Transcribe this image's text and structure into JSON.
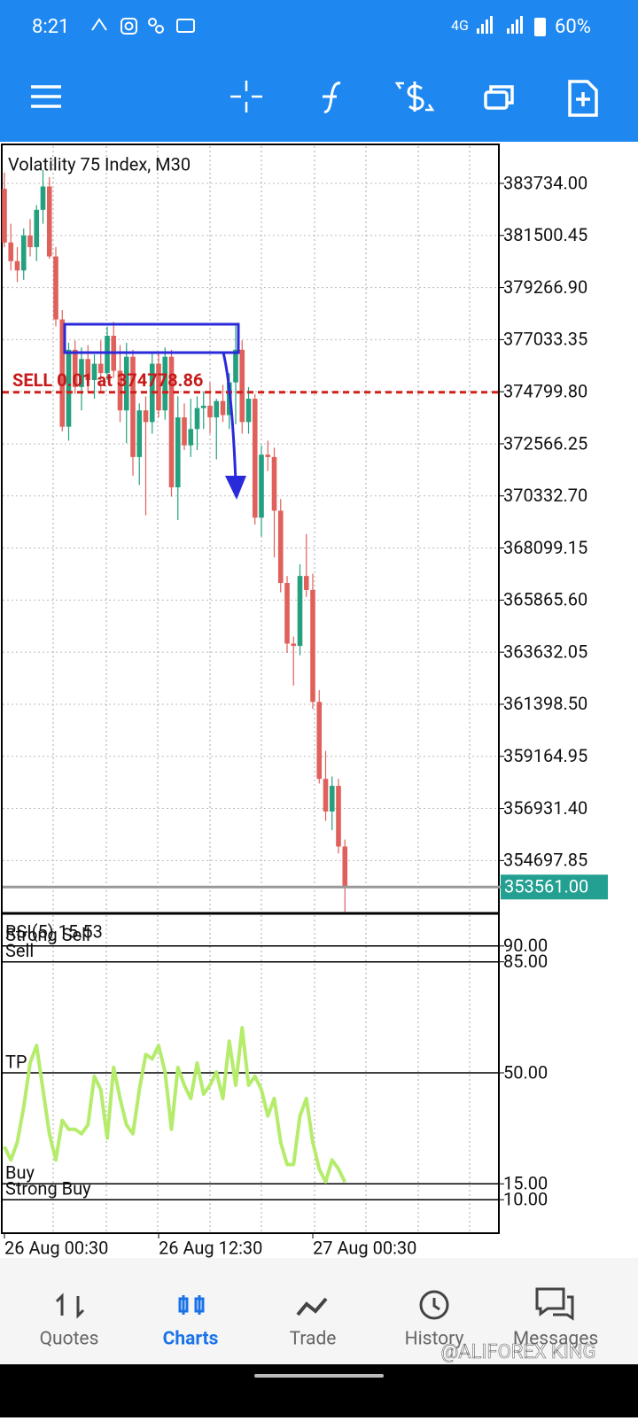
{
  "status_bar": {
    "time": "8:21",
    "network": "4G",
    "battery": "60%"
  },
  "chart_data": [
    {
      "type": "candlestick",
      "title": "Volatility 75 Index, M30",
      "categories": [
        "26 Aug 00:30",
        null,
        null,
        null,
        null,
        null,
        null,
        null,
        null,
        null,
        null,
        null,
        null,
        null,
        null,
        null,
        null,
        null,
        null,
        null,
        null,
        null,
        null,
        null,
        "26 Aug 12:30",
        null,
        null,
        null,
        null,
        null,
        null,
        null,
        null,
        null,
        null,
        null,
        null,
        null,
        null,
        null,
        null,
        null,
        null,
        null,
        null,
        null,
        null,
        null,
        "27 Aug 00:30",
        null,
        null,
        null,
        null,
        null
      ],
      "open": [
        383500,
        381200,
        380400,
        380000,
        381500,
        381000,
        382600,
        383600,
        380600,
        377900,
        373300,
        376600,
        375000,
        376200,
        375300,
        376000,
        375600,
        377200,
        375700,
        374000,
        376300,
        372000,
        374000,
        373500,
        376000,
        374000,
        376300,
        370700,
        373700,
        372500,
        373200,
        374100,
        374200,
        373700,
        374400,
        373800,
        375200,
        376600,
        373500,
        374500,
        369400,
        372100,
        372000,
        369700,
        366600,
        364000,
        363900,
        366900,
        366300,
        361500,
        358200,
        356800,
        357900,
        355300
      ],
      "high": [
        384200,
        382000,
        381000,
        381800,
        382200,
        382800,
        384300,
        384000,
        381000,
        378300,
        376900,
        377000,
        376700,
        376800,
        376400,
        377000,
        377600,
        377800,
        376800,
        376900,
        376600,
        374300,
        374600,
        376500,
        376500,
        376700,
        376600,
        374600,
        374300,
        374500,
        374600,
        374800,
        375200,
        374500,
        375100,
        375600,
        377700,
        377000,
        375000,
        374700,
        372500,
        372700,
        372400,
        370200,
        366900,
        364300,
        367400,
        368700,
        367000,
        362000,
        359400,
        358300,
        358200,
        355600
      ],
      "low": [
        381000,
        380000,
        379500,
        379600,
        380600,
        380400,
        382000,
        380500,
        377600,
        373100,
        372700,
        374700,
        374000,
        374800,
        374500,
        374800,
        375300,
        375400,
        373500,
        372600,
        371200,
        370800,
        369500,
        373000,
        373700,
        373600,
        370300,
        369300,
        372300,
        372000,
        372300,
        373200,
        373000,
        371900,
        373500,
        373200,
        373400,
        373000,
        373000,
        369100,
        368600,
        371400,
        367700,
        366200,
        363600,
        362200,
        363500,
        366000,
        361200,
        358000,
        356400,
        356000,
        355000,
        352500
      ],
      "close": [
        381200,
        380400,
        380000,
        381500,
        381000,
        382600,
        383600,
        380600,
        377900,
        373300,
        376600,
        375000,
        376200,
        375300,
        376000,
        375600,
        377200,
        375700,
        374000,
        376300,
        372000,
        374000,
        373500,
        376000,
        374000,
        376300,
        370700,
        373700,
        372500,
        373200,
        374100,
        374200,
        373700,
        374400,
        373800,
        375200,
        376600,
        373500,
        374500,
        369400,
        372100,
        372000,
        369700,
        366600,
        364000,
        363900,
        366900,
        366300,
        361500,
        358200,
        356800,
        357900,
        355300,
        353561
      ],
      "up_color": "#23a07e",
      "down_color": "#e0605c",
      "ylim": [
        352470,
        385405
      ],
      "yticks": [
        {
          "value": 383734.0,
          "label": "383734.00"
        },
        {
          "value": 381500.45,
          "label": "381500.45"
        },
        {
          "value": 379266.9,
          "label": "379266.90"
        },
        {
          "value": 377033.35,
          "label": "377033.35"
        },
        {
          "value": 374799.8,
          "label": "374799.80"
        },
        {
          "value": 372566.25,
          "label": "372566.25"
        },
        {
          "value": 370332.7,
          "label": "370332.70"
        },
        {
          "value": 368099.15,
          "label": "368099.15"
        },
        {
          "value": 365865.6,
          "label": "365865.60"
        },
        {
          "value": 363632.05,
          "label": "363632.05"
        },
        {
          "value": 361398.5,
          "label": "361398.50"
        },
        {
          "value": 359164.95,
          "label": "359164.95"
        },
        {
          "value": 356931.4,
          "label": "356931.40"
        },
        {
          "value": 354697.85,
          "label": "354697.85"
        }
      ],
      "grid": true,
      "current_price": {
        "value": 353561,
        "label": "353561.00"
      },
      "order_line": {
        "value": 374778.86,
        "label": "SELL 0.01 at 374778.86"
      }
    },
    {
      "type": "line",
      "title": "RSI(5) 15.53",
      "series": [
        {
          "color": "#b5ec6c",
          "values": [
            26.7,
            22.5,
            28.1,
            39.2,
            53.1,
            58.6,
            44.7,
            30.8,
            22.5,
            35.0,
            32.2,
            32.2,
            30.8,
            33.6,
            48.9,
            44.7,
            29.4,
            51.7,
            41.9,
            33.6,
            30.8,
            44.7,
            55.8,
            54.4,
            58.6,
            50.3,
            32.2,
            51.7,
            46.1,
            41.9,
            53.1,
            43.3,
            46.1,
            50.3,
            41.9,
            60.0,
            46.1,
            64.2,
            46.1,
            48.9,
            44.7,
            36.4,
            41.9,
            28.1,
            21.1,
            21.1,
            36.4,
            41.9,
            28.1,
            19.7,
            15.6,
            22.5,
            19.7,
            15.53
          ]
        }
      ],
      "ylim": [
        0,
        100
      ],
      "yticks": [
        {
          "value": 90,
          "label": "90.00"
        },
        {
          "value": 85,
          "label": "85.00"
        },
        {
          "value": 50,
          "label": "50.00"
        },
        {
          "value": 15,
          "label": "15.00"
        },
        {
          "value": 10,
          "label": "10.00"
        }
      ],
      "levels": [
        {
          "name": "Strong Sell",
          "value": 90
        },
        {
          "name": "Sell",
          "value": 85
        },
        {
          "name": "TP",
          "value": 50
        },
        {
          "name": "Buy",
          "value": 15
        },
        {
          "name": "Strong Buy",
          "value": 10
        }
      ]
    }
  ],
  "nav": {
    "items": [
      "Quotes",
      "Charts",
      "Trade",
      "History",
      "Messages"
    ]
  },
  "watermark": "@ALIFOREX KING"
}
